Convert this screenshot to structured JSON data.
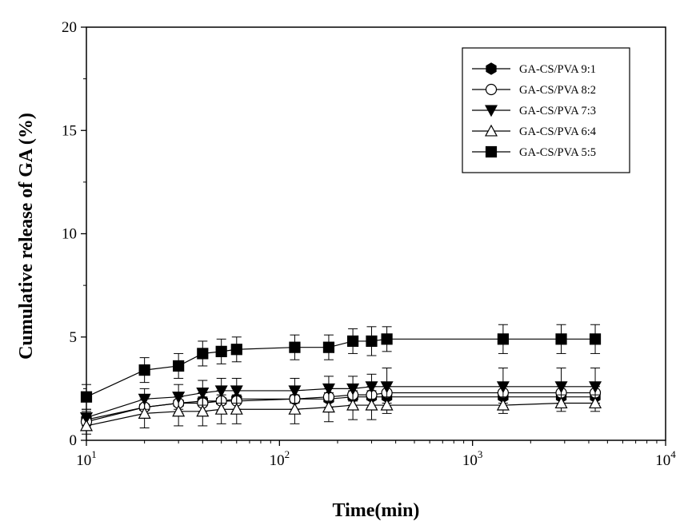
{
  "chart_data": {
    "type": "line",
    "xlabel": "Time(min)",
    "ylabel": "Cumulative release of GA (%)",
    "x_scale": "log",
    "xlim": [
      10,
      10000
    ],
    "ylim": [
      0,
      20
    ],
    "y_ticks": [
      0,
      5,
      10,
      15,
      20
    ],
    "x_ticks": [
      {
        "value": 10,
        "base": "10",
        "exp": "1"
      },
      {
        "value": 100,
        "base": "10",
        "exp": "2"
      },
      {
        "value": 1000,
        "base": "10",
        "exp": "3"
      },
      {
        "value": 10000,
        "base": "10",
        "exp": "4"
      }
    ],
    "grid": false,
    "legend_position": "top-right",
    "x": [
      10,
      20,
      30,
      40,
      50,
      60,
      120,
      180,
      240,
      300,
      360,
      1440,
      2880,
      4320
    ],
    "series": [
      {
        "name": "GA-CS/PVA 9:1",
        "marker": "hexagon-filled",
        "values": [
          1.0,
          1.6,
          1.8,
          1.9,
          1.9,
          2.0,
          2.0,
          2.0,
          2.1,
          2.1,
          2.1,
          2.1,
          2.1,
          2.1
        ],
        "errors": [
          0.4,
          0.5,
          0.5,
          0.5,
          0.5,
          0.5,
          0.5,
          0.5,
          0.5,
          0.5,
          0.5,
          0.5,
          0.5,
          0.5
        ]
      },
      {
        "name": "GA-CS/PVA 8:2",
        "marker": "circle-open",
        "values": [
          0.9,
          1.6,
          1.8,
          1.8,
          1.9,
          1.9,
          2.0,
          2.1,
          2.2,
          2.2,
          2.3,
          2.3,
          2.3,
          2.3
        ],
        "errors": [
          0.4,
          0.5,
          0.5,
          0.5,
          0.5,
          0.5,
          0.5,
          0.5,
          0.5,
          0.5,
          0.5,
          0.5,
          0.5,
          0.5
        ]
      },
      {
        "name": "GA-CS/PVA 7:3",
        "marker": "triangle-down-filled",
        "values": [
          1.1,
          2.0,
          2.1,
          2.3,
          2.4,
          2.4,
          2.4,
          2.5,
          2.5,
          2.6,
          2.6,
          2.6,
          2.6,
          2.6
        ],
        "errors": [
          0.4,
          0.5,
          0.6,
          0.6,
          0.6,
          0.6,
          0.6,
          0.6,
          0.6,
          0.6,
          0.9,
          0.9,
          0.9,
          0.9
        ]
      },
      {
        "name": "GA-CS/PVA 6:4",
        "marker": "triangle-up-open",
        "values": [
          0.7,
          1.3,
          1.4,
          1.4,
          1.5,
          1.5,
          1.5,
          1.6,
          1.7,
          1.7,
          1.7,
          1.7,
          1.8,
          1.8
        ],
        "errors": [
          0.4,
          0.7,
          0.7,
          0.7,
          0.7,
          0.7,
          0.7,
          0.7,
          0.7,
          0.7,
          0.4,
          0.4,
          0.4,
          0.4
        ]
      },
      {
        "name": "GA-CS/PVA 5:5",
        "marker": "square-filled",
        "values": [
          2.1,
          3.4,
          3.6,
          4.2,
          4.3,
          4.4,
          4.5,
          4.5,
          4.8,
          4.8,
          4.9,
          4.9,
          4.9,
          4.9
        ],
        "errors": [
          0.6,
          0.6,
          0.6,
          0.6,
          0.6,
          0.6,
          0.6,
          0.6,
          0.6,
          0.7,
          0.6,
          0.7,
          0.7,
          0.7
        ]
      }
    ]
  }
}
